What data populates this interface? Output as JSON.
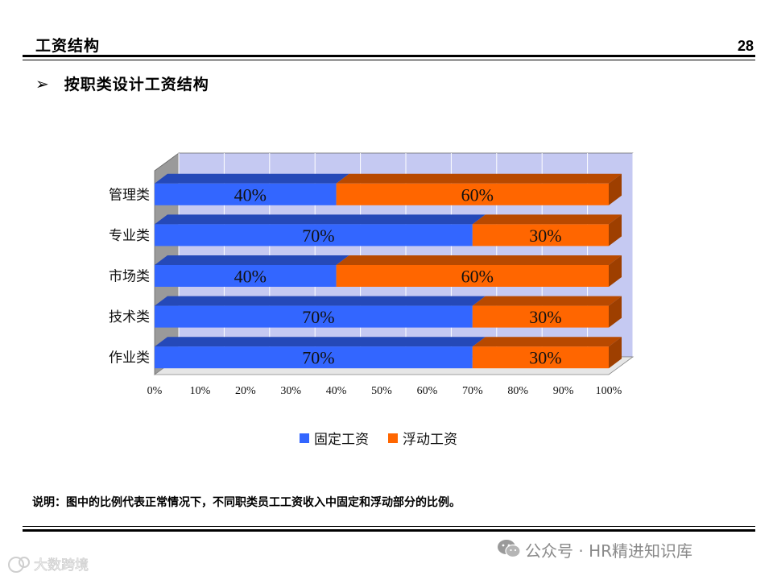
{
  "header": {
    "title": "工资结构",
    "page_number": "28"
  },
  "section": {
    "bullet": "按职类设计工资结构"
  },
  "chart_data": {
    "type": "bar",
    "orientation": "horizontal",
    "stacked": "percent",
    "categories": [
      "管理类",
      "专业类",
      "市场类",
      "技术类",
      "作业类"
    ],
    "series": [
      {
        "name": "固定工资",
        "values": [
          40,
          70,
          40,
          70,
          70
        ],
        "labels": [
          "40%",
          "70%",
          "40%",
          "70%",
          "70%"
        ],
        "color": "#3366ff"
      },
      {
        "name": "浮动工资",
        "values": [
          60,
          30,
          60,
          30,
          30
        ],
        "labels": [
          "60%",
          "30%",
          "60%",
          "30%",
          "30%"
        ],
        "color": "#ff6600"
      }
    ],
    "x_ticks": [
      "0%",
      "10%",
      "20%",
      "30%",
      "40%",
      "50%",
      "60%",
      "70%",
      "80%",
      "90%",
      "100%"
    ],
    "xlim": [
      0,
      100
    ],
    "grid": true,
    "legend_position": "bottom",
    "colors": {
      "wall": "#c5c9f2",
      "floor": "#9a9a9a",
      "grid": "#ffffff"
    }
  },
  "note": "说明：图中的比例代表正常情况下，不同职类员工工资收入中固定和浮动部分的比例。",
  "watermark": {
    "text": "公众号 · HR精进知识库",
    "corner_logo": "大数跨境"
  }
}
